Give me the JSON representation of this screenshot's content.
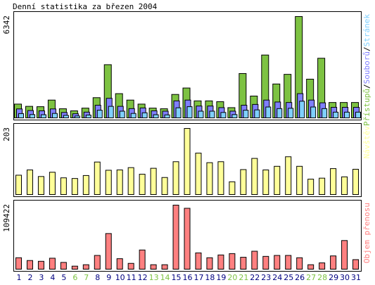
{
  "title": "Denní statistika za březen 2004",
  "colors": {
    "pristupy": "#7dc242",
    "soubory": "#7f7fff",
    "stranky": "#7fd0ff",
    "navstevy": "#ffff99",
    "prenosy": "#ff8080",
    "weekend_day": "#7dc242",
    "weekday": "#000080",
    "frame": "#000000"
  },
  "chart_data": [
    {
      "type": "bar",
      "panel": "hits",
      "max_label": "6342",
      "categories": [
        "1",
        "2",
        "3",
        "4",
        "5",
        "6",
        "7",
        "8",
        "9",
        "10",
        "11",
        "12",
        "13",
        "14",
        "15",
        "16",
        "17",
        "18",
        "19",
        "20",
        "21",
        "22",
        "23",
        "24",
        "25",
        "26",
        "27",
        "28",
        "29",
        "30",
        "31"
      ],
      "weekend": [
        6,
        7,
        13,
        14,
        20,
        21,
        27,
        28
      ],
      "series": [
        {
          "name": "Přístupů",
          "color": "#7dc242",
          "values": [
            900,
            760,
            740,
            1150,
            610,
            480,
            650,
            1300,
            3350,
            1550,
            1150,
            900,
            650,
            610,
            1500,
            1900,
            1100,
            1100,
            1050,
            680,
            2800,
            1400,
            3950,
            2150,
            2750,
            6342,
            2450,
            3750,
            1000,
            1000,
            1000
          ]
        },
        {
          "name": "Souborů",
          "color": "#7f7fff",
          "values": [
            600,
            500,
            480,
            600,
            380,
            300,
            400,
            830,
            1260,
            760,
            620,
            660,
            480,
            460,
            1100,
            1150,
            780,
            780,
            680,
            460,
            830,
            880,
            1150,
            1030,
            1000,
            1550,
            1150,
            980,
            700,
            700,
            700
          ]
        },
        {
          "name": "Stránek",
          "color": "#7fd0ff",
          "values": [
            310,
            250,
            240,
            320,
            200,
            160,
            220,
            520,
            760,
            460,
            320,
            360,
            240,
            230,
            670,
            740,
            460,
            460,
            380,
            250,
            520,
            540,
            720,
            620,
            640,
            1080,
            720,
            620,
            400,
            400,
            400
          ]
        }
      ]
    },
    {
      "type": "bar",
      "panel": "visits",
      "max_label": "203",
      "series": [
        {
          "name": "Návštěv",
          "color": "#ffff99",
          "values": [
            61,
            77,
            57,
            70,
            53,
            51,
            60,
            101,
            76,
            77,
            84,
            64,
            82,
            54,
            102,
            203,
            128,
            99,
            102,
            41,
            78,
            112,
            77,
            88,
            117,
            88,
            49,
            52,
            81,
            56,
            79
          ]
        }
      ]
    },
    {
      "type": "bar",
      "panel": "kbytes",
      "max_label": "109422",
      "series": [
        {
          "name": "Objem přenosu",
          "color": "#ff8080",
          "values": [
            20500,
            15800,
            14500,
            19700,
            12600,
            6300,
            8700,
            24400,
            61400,
            18900,
            11000,
            33600,
            8700,
            8700,
            109422,
            104100,
            28700,
            20500,
            25200,
            27500,
            21300,
            31500,
            22800,
            24400,
            24400,
            20500,
            8700,
            11800,
            23600,
            49600,
            17300
          ]
        }
      ]
    }
  ]
}
